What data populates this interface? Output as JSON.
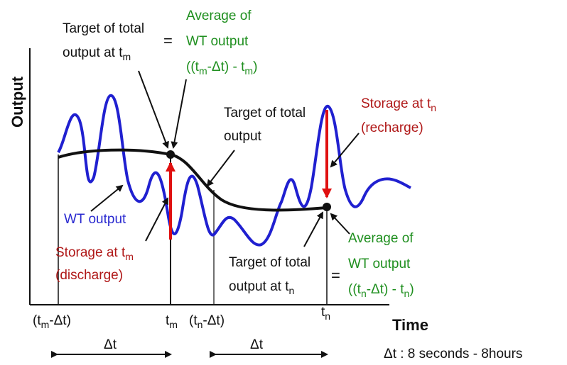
{
  "axes": {
    "y_label": "Output",
    "x_label": "Time"
  },
  "series": {
    "wt_output_label": "WT output",
    "wt_color": "#2020d0",
    "target_color": "#111111",
    "storage_color": "#e01010"
  },
  "labels": {
    "target_tm_line1": "Target of total",
    "target_tm_line2": "output at t",
    "target_tm_sub": "m",
    "equals": "=",
    "avg_m_line1": "Average of",
    "avg_m_line2": "WT output",
    "avg_m_line3": "((t",
    "avg_m_line3_sub1": "m",
    "avg_m_line3_mid": "-Δt) - t",
    "avg_m_line3_sub2": "m",
    "avg_m_line3_end": ")",
    "target_total_line1": "Target of total",
    "target_total_line2": "output",
    "storage_tn_line1": "Storage at t",
    "storage_tn_sub": "n",
    "storage_tn_line2": "(recharge)",
    "storage_tm_line1": "Storage  at  t",
    "storage_tm_sub": "m",
    "storage_tm_line2": "(discharge)",
    "target_tn_line1": "Target of total",
    "target_tn_line2": "output at t",
    "target_tn_sub": "n",
    "avg_n_line1": "Average of",
    "avg_n_line2": "WT output",
    "avg_n_line3": "((t",
    "avg_n_line3_sub1": "n",
    "avg_n_line3_mid": "-Δt) - t",
    "avg_n_line3_sub2": "n",
    "avg_n_line3_end": ")"
  },
  "ticks": {
    "tm_minus": "(t",
    "tm_minus_sub": "m",
    "tm_minus_end": "-Δt)",
    "tm": "t",
    "tm_sub": "m",
    "tn_minus": "(t",
    "tn_minus_sub": "n",
    "tn_minus_end": "-Δt)",
    "tn": "t",
    "tn_sub": "n"
  },
  "intervals": {
    "delta_label_1": "Δt",
    "delta_label_2": "Δt",
    "legend": "Δt : 8 seconds - 8hours"
  }
}
